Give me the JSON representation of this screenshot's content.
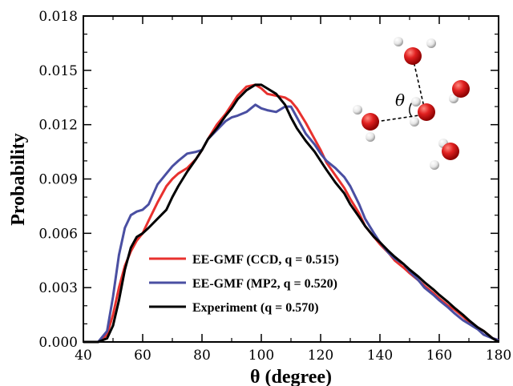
{
  "chart_data": {
    "type": "line",
    "title": "",
    "xlabel": "θ (degree)",
    "ylabel": "Probability",
    "xlim": [
      40,
      180
    ],
    "ylim": [
      0.0,
      0.018
    ],
    "xticks": [
      40,
      60,
      80,
      100,
      120,
      140,
      160,
      180
    ],
    "xtick_labels": [
      "40",
      "60",
      "80",
      "100",
      "120",
      "140",
      "160",
      "180"
    ],
    "yticks": [
      0.0,
      0.003,
      0.006,
      0.009,
      0.012,
      0.015,
      0.018
    ],
    "ytick_labels": [
      "0.000",
      "0.003",
      "0.006",
      "0.009",
      "0.012",
      "0.015",
      "0.018"
    ],
    "grid": false,
    "legend_position": "lower-left",
    "series": [
      {
        "name": "EE-GMF (CCD, q = 0.515)",
        "color": "#e8312e",
        "x": [
          40,
          45,
          48,
          50,
          52,
          54,
          56,
          58,
          60,
          62,
          65,
          68,
          70,
          72,
          75,
          78,
          80,
          82,
          85,
          88,
          90,
          92,
          95,
          98,
          100,
          102,
          105,
          108,
          110,
          112,
          115,
          118,
          120,
          122,
          125,
          128,
          130,
          133,
          135,
          138,
          140,
          143,
          145,
          148,
          150,
          153,
          155,
          158,
          160,
          163,
          165,
          168,
          170,
          173,
          175,
          178,
          180
        ],
        "y": [
          0.0,
          0.0,
          0.0004,
          0.0015,
          0.003,
          0.0042,
          0.005,
          0.0056,
          0.006,
          0.0067,
          0.0077,
          0.0086,
          0.009,
          0.0093,
          0.0096,
          0.0101,
          0.0106,
          0.0112,
          0.012,
          0.0126,
          0.0131,
          0.0136,
          0.0141,
          0.0142,
          0.014,
          0.0137,
          0.0136,
          0.0135,
          0.0133,
          0.0129,
          0.0121,
          0.0112,
          0.0106,
          0.0099,
          0.0092,
          0.0085,
          0.0079,
          0.0071,
          0.0064,
          0.0058,
          0.0054,
          0.0049,
          0.0045,
          0.0041,
          0.0038,
          0.0034,
          0.0031,
          0.0027,
          0.0024,
          0.002,
          0.0018,
          0.0014,
          0.0011,
          0.0008,
          0.0006,
          0.0002,
          0.0001
        ]
      },
      {
        "name": "EE-GMF (MP2, q = 0.520)",
        "color": "#4a4fa2",
        "x": [
          40,
          45,
          48,
          50,
          52,
          54,
          56,
          58,
          60,
          62,
          65,
          68,
          70,
          72,
          75,
          78,
          80,
          82,
          85,
          88,
          90,
          92,
          95,
          98,
          100,
          102,
          105,
          108,
          110,
          112,
          115,
          118,
          120,
          122,
          125,
          128,
          130,
          133,
          135,
          138,
          140,
          143,
          145,
          148,
          150,
          153,
          155,
          158,
          160,
          163,
          165,
          168,
          170,
          173,
          175,
          178,
          180
        ],
        "y": [
          0.0,
          0.0,
          0.0006,
          0.0025,
          0.0048,
          0.0063,
          0.007,
          0.0072,
          0.0073,
          0.0076,
          0.0087,
          0.0093,
          0.0097,
          0.01,
          0.0104,
          0.0105,
          0.0106,
          0.0112,
          0.0117,
          0.0122,
          0.0124,
          0.0125,
          0.0127,
          0.0131,
          0.0129,
          0.0128,
          0.0127,
          0.013,
          0.013,
          0.0124,
          0.0115,
          0.0109,
          0.0104,
          0.01,
          0.0096,
          0.0091,
          0.0086,
          0.0076,
          0.0068,
          0.006,
          0.0055,
          0.0049,
          0.0046,
          0.0043,
          0.0039,
          0.0034,
          0.003,
          0.0026,
          0.0023,
          0.0019,
          0.0016,
          0.0012,
          0.001,
          0.0007,
          0.0004,
          0.0002,
          0.0001
        ]
      },
      {
        "name": "Experiment (q = 0.570)",
        "color": "#000000",
        "x": [
          40,
          45,
          48,
          50,
          52,
          54,
          56,
          58,
          60,
          62,
          65,
          68,
          70,
          72,
          75,
          78,
          80,
          82,
          85,
          88,
          90,
          92,
          95,
          98,
          100,
          102,
          105,
          108,
          110,
          112,
          115,
          118,
          120,
          122,
          125,
          128,
          130,
          133,
          135,
          138,
          140,
          143,
          145,
          148,
          150,
          153,
          155,
          158,
          160,
          163,
          165,
          168,
          170,
          173,
          175,
          178,
          180
        ],
        "y": [
          0.0,
          0.0,
          0.0002,
          0.0009,
          0.0023,
          0.004,
          0.0052,
          0.0058,
          0.006,
          0.0063,
          0.0068,
          0.0073,
          0.008,
          0.0086,
          0.0094,
          0.0101,
          0.0106,
          0.0112,
          0.0118,
          0.0125,
          0.0129,
          0.0134,
          0.0139,
          0.0142,
          0.0142,
          0.014,
          0.0137,
          0.0131,
          0.0124,
          0.0118,
          0.0111,
          0.0105,
          0.01,
          0.0095,
          0.0088,
          0.0082,
          0.0076,
          0.0069,
          0.0064,
          0.0058,
          0.0055,
          0.005,
          0.0047,
          0.0043,
          0.004,
          0.0036,
          0.0033,
          0.0029,
          0.0026,
          0.0022,
          0.0019,
          0.0015,
          0.0012,
          0.0008,
          0.0006,
          0.0002,
          0.0
        ]
      }
    ],
    "inset": {
      "angle_label": "θ",
      "oxygen_color": "#e02020",
      "hydrogen_color": "#e6e6e6"
    }
  }
}
